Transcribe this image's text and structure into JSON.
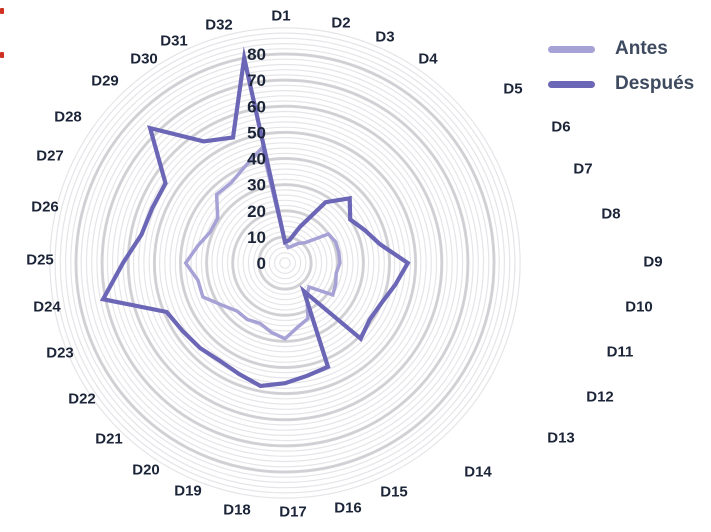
{
  "chart_data": {
    "type": "radar",
    "title": "",
    "categories": [
      "D1",
      "D2",
      "D3",
      "D4",
      "D5",
      "D6",
      "D7",
      "D8",
      "D9",
      "D10",
      "D11",
      "D12",
      "D13",
      "D14",
      "D15",
      "D16",
      "D17",
      "D18",
      "D19",
      "D20",
      "D21",
      "D22",
      "D23",
      "D24",
      "D25",
      "D26",
      "D27",
      "D28",
      "D29",
      "D30",
      "D31",
      "D32"
    ],
    "series": [
      {
        "name": "Antes",
        "color": "#a7a2d5",
        "width": 3.5,
        "values": [
          8,
          6,
          7,
          9,
          11,
          20,
          21,
          21,
          21,
          20,
          21,
          22,
          13,
          15,
          23,
          25,
          29,
          27,
          25,
          26,
          26,
          29,
          34,
          34,
          38,
          34,
          31,
          31,
          37,
          37,
          40,
          45
        ]
      },
      {
        "name": "Después",
        "color": "#6b66b5",
        "width": 4.2,
        "values": [
          8,
          9,
          15,
          28,
          35,
          30,
          33,
          37,
          47,
          43,
          40,
          39,
          41,
          13,
          43,
          44,
          46,
          48,
          46,
          45,
          46,
          47,
          49,
          71,
          62,
          56,
          55,
          55,
          73,
          56,
          52,
          80
        ]
      }
    ],
    "radial_axis": {
      "ticks": [
        0,
        10,
        20,
        30,
        40,
        50,
        60,
        70,
        80
      ],
      "min": 0,
      "max": 80,
      "outer_ring": 90,
      "minor_step": 2,
      "major_step": 10
    },
    "legend_position": "top-right",
    "grid": true,
    "fill": "none"
  },
  "legend": {
    "items": [
      {
        "label": "Antes"
      },
      {
        "label": "Después"
      }
    ]
  },
  "colors": {
    "background": "#ffffff",
    "grid_minor": "#e5e5e9",
    "grid_major": "#c6c6cb",
    "category_label": "#1c2538",
    "tick_label": "#1c2538",
    "legend_text": "#3e4a5f",
    "edge_artifact": "#d03020"
  }
}
